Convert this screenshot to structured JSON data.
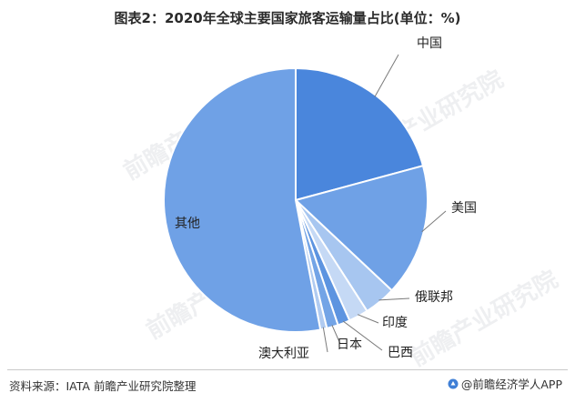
{
  "title": "图表2：2020年全球主要国家旅客运输量占比(单位：%)",
  "footer": {
    "source": "资料来源：IATA 前瞻产业研究院整理",
    "brand": "@前瞻经济学人APP"
  },
  "watermark": "前瞻产业研究院",
  "chart_data": {
    "type": "pie",
    "title": "图表2：2020年全球主要国家旅客运输量占比(单位：%)",
    "start_angle_deg": 0,
    "direction": "clockwise",
    "show_values": false,
    "slices": [
      {
        "label": "中国",
        "value": 20.8,
        "color": "#4a86dc"
      },
      {
        "label": "美国",
        "value": 16.2,
        "color": "#6fa1e6"
      },
      {
        "label": "俄联邦",
        "value": 3.9,
        "color": "#a7c6f0"
      },
      {
        "label": "印度",
        "value": 2.4,
        "color": "#c5d9f5"
      },
      {
        "label": "巴西",
        "value": 1.5,
        "color": "#5d94e0"
      },
      {
        "label": "日本",
        "value": 1.4,
        "color": "#73a4e6"
      },
      {
        "label": "澳大利亚",
        "value": 0.8,
        "color": "#b0cbf1"
      },
      {
        "label": "其他",
        "value": 53.0,
        "color": "#6fa1e6"
      }
    ]
  }
}
